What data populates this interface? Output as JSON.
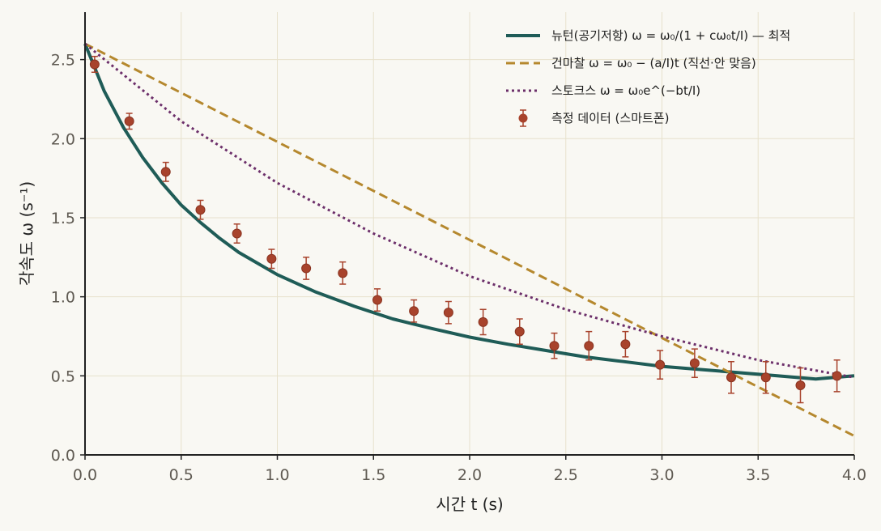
{
  "chart_data": {
    "type": "line",
    "title": "",
    "xlabel": "시간  t  (s)",
    "ylabel": "각속도  ω  (s⁻¹)",
    "xlim": [
      0,
      4
    ],
    "ylim": [
      0,
      2.8
    ],
    "xticks": [
      0,
      0.5,
      1,
      1.5,
      2,
      2.5,
      3,
      3.5,
      4
    ],
    "xtick_labels": [
      "0.0",
      "0.5",
      "1.0",
      "1.5",
      "2.0",
      "2.5",
      "3.0",
      "3.5",
      "4.0"
    ],
    "yticks": [
      0,
      0.5,
      1,
      1.5,
      2,
      2.5
    ],
    "ytick_labels": [
      "0.0",
      "0.5",
      "1.0",
      "1.5",
      "2.0",
      "2.5"
    ],
    "grid": true,
    "legend_position": "top-right",
    "series": [
      {
        "name": "뉴턴(공기저항)  ω = ω₀/(1 + cω₀t/I) — 최적",
        "kind": "line",
        "style": "solid",
        "color": "#1f5c57",
        "x": [
          0,
          0.1,
          0.2,
          0.3,
          0.4,
          0.5,
          0.6,
          0.7,
          0.8,
          0.9,
          1.0,
          1.2,
          1.4,
          1.6,
          1.8,
          2.0,
          2.2,
          2.4,
          2.6,
          2.8,
          3.0,
          3.2,
          3.4,
          3.6,
          3.8,
          4.0
        ],
        "y": [
          2.6,
          2.3,
          2.07,
          1.88,
          1.72,
          1.58,
          1.47,
          1.37,
          1.28,
          1.21,
          1.14,
          1.03,
          0.94,
          0.86,
          0.8,
          0.745,
          0.7,
          0.66,
          0.62,
          0.59,
          0.56,
          0.54,
          0.52,
          0.5,
          0.48,
          0.5
        ]
      },
      {
        "name": "건마찰  ω = ω₀ − (a/I)t  (직선·안 맞음)",
        "kind": "line",
        "style": "dashed",
        "color": "#b5882e",
        "x": [
          0,
          4
        ],
        "y": [
          2.6,
          0.12
        ]
      },
      {
        "name": "스토크스  ω = ω₀e^(−bt/I)",
        "kind": "line",
        "style": "dotted",
        "color": "#6c2f6a",
        "x": [
          0,
          0.5,
          1.0,
          1.5,
          2.0,
          2.5,
          3.0,
          3.5,
          4.0
        ],
        "y": [
          2.6,
          2.11,
          1.72,
          1.4,
          1.13,
          0.92,
          0.75,
          0.6,
          0.49
        ]
      },
      {
        "name": "측정 데이터 (스마트폰)",
        "kind": "errorbar",
        "color": "#a8432c",
        "x": [
          0.05,
          0.23,
          0.42,
          0.6,
          0.79,
          0.97,
          1.15,
          1.34,
          1.52,
          1.71,
          1.89,
          2.07,
          2.26,
          2.44,
          2.62,
          2.81,
          2.99,
          3.17,
          3.36,
          3.54,
          3.72,
          3.91
        ],
        "y": [
          2.47,
          2.11,
          1.79,
          1.55,
          1.4,
          1.24,
          1.18,
          1.15,
          0.98,
          0.91,
          0.9,
          0.84,
          0.78,
          0.69,
          0.69,
          0.7,
          0.57,
          0.58,
          0.49,
          0.49,
          0.44,
          0.5
        ],
        "yerr": [
          0.05,
          0.05,
          0.06,
          0.06,
          0.06,
          0.06,
          0.07,
          0.07,
          0.07,
          0.07,
          0.07,
          0.08,
          0.08,
          0.08,
          0.09,
          0.08,
          0.09,
          0.09,
          0.1,
          0.1,
          0.11,
          0.1
        ]
      }
    ]
  }
}
